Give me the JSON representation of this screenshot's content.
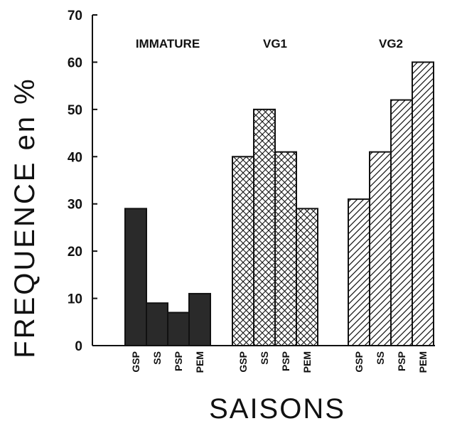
{
  "chart_data": {
    "type": "bar",
    "ylabel": "FREQUENCE en %",
    "xlabel": "SAISONS",
    "ylim": [
      0,
      70
    ],
    "yticks": [
      0,
      10,
      20,
      30,
      40,
      50,
      60,
      70
    ],
    "grid": false,
    "categories": [
      "GSP",
      "SS",
      "PSP",
      "PEM"
    ],
    "groups": [
      {
        "label": "IMMATURE",
        "pattern": "solid",
        "values": [
          29,
          9,
          7,
          11
        ]
      },
      {
        "label": "VG1",
        "pattern": "crosshatch",
        "values": [
          40,
          50,
          41,
          29
        ]
      },
      {
        "label": "VG2",
        "pattern": "diagonal",
        "values": [
          31,
          41,
          52,
          60
        ]
      }
    ]
  }
}
